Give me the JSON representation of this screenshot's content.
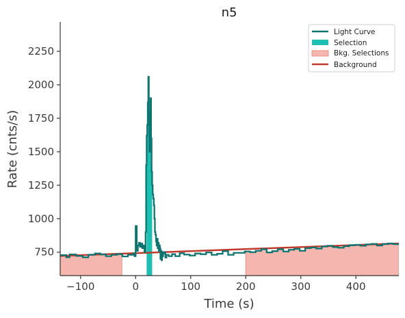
{
  "chart_data": {
    "type": "line",
    "title": "n5",
    "xlabel": "Time (s)",
    "ylabel": "Rate (cnts/s)",
    "xlim": [
      -137,
      478
    ],
    "ylim": [
      575,
      2470
    ],
    "xticks": [
      -100,
      0,
      100,
      200,
      300,
      400
    ],
    "yticks": [
      750,
      1000,
      1250,
      1500,
      1750,
      2000,
      2250
    ],
    "xtick_labels": [
      "−100",
      "0",
      "100",
      "200",
      "300",
      "400"
    ],
    "ytick_labels": [
      "750",
      "1000",
      "1250",
      "1500",
      "1750",
      "2000",
      "2250"
    ],
    "legend_position": "top-right",
    "colors": {
      "light_curve": "#0e7470",
      "selection": "#1dbfb2",
      "bkg_fill": "#f4b6ae",
      "bkg_edge": "#ee8e84",
      "background": "#c0392b",
      "axis": "#333333"
    },
    "legend": [
      "Light Curve",
      "Selection",
      "Bkg. Selections",
      "Background"
    ],
    "selection": [
      20,
      30
    ],
    "bkg_selections": [
      [
        -137,
        -25
      ],
      [
        200,
        478
      ]
    ],
    "background_line": {
      "x": [
        -137,
        478
      ],
      "y": [
        722,
        815
      ]
    },
    "series": [
      {
        "name": "Light Curve",
        "x": [
          -137,
          -126,
          -120,
          -108,
          -96,
          -86,
          -74,
          -64,
          -54,
          -44,
          -34,
          -24,
          -14,
          -4,
          -2,
          0,
          2,
          4,
          6,
          8,
          10,
          12,
          14,
          16,
          18,
          19,
          20,
          21,
          22,
          23,
          24,
          25,
          26,
          27,
          28,
          29,
          30,
          31,
          32,
          33,
          34,
          35,
          36,
          37,
          38,
          39,
          40,
          41,
          42,
          43,
          44,
          45,
          46,
          47,
          48,
          49,
          50,
          52,
          54,
          56,
          60,
          66,
          72,
          80,
          88,
          98,
          108,
          118,
          128,
          138,
          148,
          158,
          168,
          178,
          188,
          198,
          208,
          218,
          228,
          238,
          248,
          258,
          268,
          278,
          288,
          298,
          308,
          318,
          328,
          338,
          348,
          358,
          368,
          378,
          388,
          398,
          408,
          418,
          428,
          438,
          448,
          458,
          468
        ],
        "y": [
          728,
          712,
          733,
          722,
          712,
          730,
          740,
          733,
          720,
          730,
          735,
          718,
          730,
          740,
          720,
          945,
          760,
          800,
          820,
          790,
          815,
          780,
          800,
          750,
          900,
          1400,
          1620,
          1700,
          1870,
          2060,
          1800,
          1500,
          1700,
          1900,
          1600,
          1350,
          1250,
          1180,
          1150,
          1100,
          1000,
          900,
          880,
          830,
          800,
          850,
          780,
          820,
          760,
          800,
          780,
          700,
          760,
          690,
          750,
          720,
          740,
          750,
          710,
          730,
          720,
          735,
          720,
          742,
          732,
          725,
          740,
          735,
          748,
          730,
          738,
          758,
          730,
          745,
          745,
          755,
          750,
          760,
          772,
          748,
          758,
          772,
          755,
          768,
          775,
          760,
          780,
          785,
          777,
          792,
          798,
          788,
          783,
          795,
          802,
          805,
          798,
          808,
          812,
          800,
          810,
          815,
          810
        ]
      }
    ]
  }
}
